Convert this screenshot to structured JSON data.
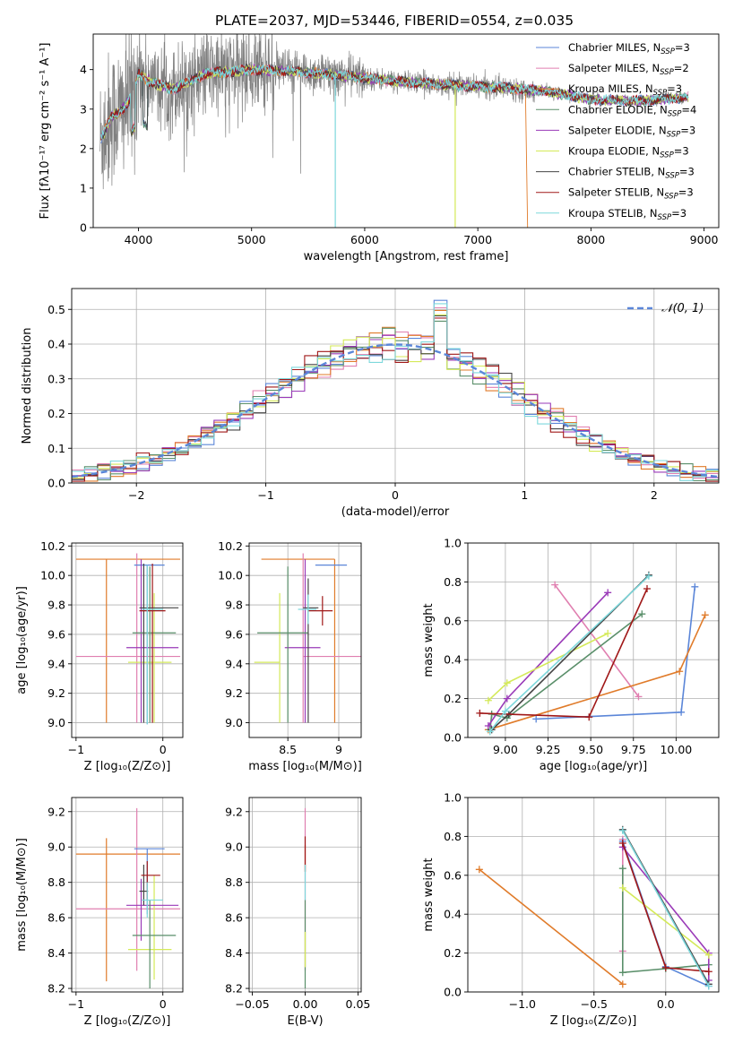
{
  "figure_title": "PLATE=2037, MJD=53446, FIBERID=0554, z=0.035",
  "colors": {
    "chabrier_miles": "#5b86d8",
    "salpeter_miles": "#e07fb0",
    "kroupa_miles": "#e07b2a",
    "chabrier_elodie": "#5a8f6a",
    "salpeter_elodie": "#9a3ab8",
    "kroupa_elodie": "#d4ea58",
    "chabrier_stelib": "#444444",
    "salpeter_stelib": "#a01818",
    "kroupa_stelib": "#7dd8dc",
    "data": "#808080",
    "normal": "#5b86d8"
  },
  "legend": [
    {
      "name": "Chabrier MILES, N",
      "sub": "SSP",
      "suffix": "=3",
      "color_key": "chabrier_miles"
    },
    {
      "name": "Salpeter MILES, N",
      "sub": "SSP",
      "suffix": "=2",
      "color_key": "salpeter_miles"
    },
    {
      "name": "Kroupa MILES, N",
      "sub": "SSP",
      "suffix": "=3",
      "color_key": "kroupa_miles"
    },
    {
      "name": "Chabrier ELODIE, N",
      "sub": "SSP",
      "suffix": "=4",
      "color_key": "chabrier_elodie"
    },
    {
      "name": "Salpeter ELODIE, N",
      "sub": "SSP",
      "suffix": "=3",
      "color_key": "salpeter_elodie"
    },
    {
      "name": "Kroupa ELODIE, N",
      "sub": "SSP",
      "suffix": "=3",
      "color_key": "kroupa_elodie"
    },
    {
      "name": "Chabrier STELIB, N",
      "sub": "SSP",
      "suffix": "=3",
      "color_key": "chabrier_stelib"
    },
    {
      "name": "Salpeter STELIB, N",
      "sub": "SSP",
      "suffix": "=3",
      "color_key": "salpeter_stelib"
    },
    {
      "name": "Kroupa STELIB, N",
      "sub": "SSP",
      "suffix": "=3",
      "color_key": "kroupa_stelib"
    }
  ],
  "chart_data": [
    {
      "id": "spectrum",
      "type": "line",
      "xlabel": "wavelength [Angstrom, rest frame]",
      "ylabel": "Flux [fλ10⁻¹⁷ erg cm⁻² s⁻¹ A⁻¹]",
      "xlim": [
        3600,
        9130
      ],
      "ylim": [
        0,
        4.9
      ],
      "xticks": [
        4000,
        5000,
        6000,
        7000,
        8000,
        9000
      ],
      "yticks": [
        0,
        1,
        2,
        3,
        4
      ],
      "grid": false,
      "legend_position": "top-right",
      "data_range": [
        3660,
        8860
      ],
      "model_profile": [
        [
          3660,
          2.2
        ],
        [
          3760,
          2.8
        ],
        [
          3860,
          3.0
        ],
        [
          3960,
          3.4
        ],
        [
          4000,
          3.9
        ],
        [
          4100,
          3.7
        ],
        [
          4300,
          3.5
        ],
        [
          4600,
          3.9
        ],
        [
          5000,
          4.0
        ],
        [
          5400,
          3.95
        ],
        [
          5800,
          3.85
        ],
        [
          6300,
          3.7
        ],
        [
          6800,
          3.6
        ],
        [
          7200,
          3.55
        ],
        [
          7600,
          3.45
        ],
        [
          8000,
          3.25
        ],
        [
          8400,
          3.2
        ],
        [
          8860,
          3.3
        ]
      ]
    },
    {
      "id": "residuals",
      "type": "line",
      "xlabel": "(data-model)/error",
      "ylabel": "Normed distribution",
      "xlim": [
        -2.5,
        2.5
      ],
      "ylim": [
        0,
        0.56
      ],
      "xticks": [
        -2,
        -1,
        0,
        1,
        2
      ],
      "yticks": [
        0,
        0.1,
        0.2,
        0.3,
        0.4,
        0.5
      ],
      "grid": true,
      "legend": "𝒩(0, 1)",
      "legend_position": "top-right",
      "bin_width": 0.1
    },
    {
      "id": "age_vs_Z",
      "type": "scatter",
      "xlabel": "Z [log₁₀(Z/Z⊙)]",
      "ylabel": "age  [log₁₀(age/yr)]",
      "xlim": [
        -1.05,
        0.23
      ],
      "ylim": [
        8.9,
        10.22
      ],
      "xticks": [
        -1,
        0
      ],
      "yticks": [
        9.0,
        9.2,
        9.4,
        9.6,
        9.8,
        10.0,
        10.2
      ],
      "grid": true,
      "points": [
        {
          "series": "kroupa_miles",
          "x": -0.65,
          "xerr": [
            0.35,
            0.85
          ],
          "y": 10.11,
          "yerr": [
            1.11,
            0.0
          ]
        },
        {
          "series": "salpeter_miles",
          "x": -0.3,
          "xerr": [
            0.7,
            0.5
          ],
          "y": 9.45,
          "yerr": [
            0.45,
            0.7
          ]
        },
        {
          "series": "chabrier_miles",
          "x": -0.18,
          "xerr": [
            0.15,
            0.2
          ],
          "y": 10.07,
          "yerr": [
            1.08,
            0.0
          ]
        },
        {
          "series": "kroupa_elodie",
          "x": -0.1,
          "xerr": [
            0.3,
            0.2
          ],
          "y": 9.41,
          "yerr": [
            0.41,
            0.47
          ]
        },
        {
          "series": "salpeter_elodie",
          "x": -0.25,
          "xerr": [
            0.17,
            0.43
          ],
          "y": 9.51,
          "yerr": [
            0.51,
            0.6
          ]
        },
        {
          "series": "chabrier_elodie",
          "x": -0.15,
          "xerr": [
            0.2,
            0.3
          ],
          "y": 9.61,
          "yerr": [
            0.61,
            0.45
          ]
        },
        {
          "series": "chabrier_stelib",
          "x": -0.22,
          "xerr": [
            0.05,
            0.4
          ],
          "y": 9.78,
          "yerr": [
            0.78,
            0.3
          ]
        },
        {
          "series": "salpeter_stelib",
          "x": -0.12,
          "xerr": [
            0.15,
            0.15
          ],
          "y": 9.76,
          "yerr": [
            0.76,
            0.32
          ]
        },
        {
          "series": "kroupa_stelib",
          "x": -0.18,
          "xerr": [
            0.06,
            0.18
          ],
          "y": 9.77,
          "yerr": [
            0.78,
            0.3
          ]
        }
      ]
    },
    {
      "id": "age_vs_mass",
      "type": "scatter",
      "xlabel": "mass [log₁₀(M/M⊙)]",
      "xlim": [
        8.12,
        9.22
      ],
      "ylim": [
        8.9,
        10.22
      ],
      "xticks": [
        8.5,
        9.0
      ],
      "yticks": [
        9.0,
        9.2,
        9.4,
        9.6,
        9.8,
        10.0,
        10.2
      ],
      "grid": true,
      "points": [
        {
          "series": "kroupa_miles",
          "x": 8.96,
          "xerr": [
            0.72,
            0.0
          ],
          "y": 10.11,
          "yerr": [
            1.11,
            0.0
          ]
        },
        {
          "series": "salpeter_miles",
          "x": 8.65,
          "xerr": [
            0.0,
            0.57
          ],
          "y": 9.45,
          "yerr": [
            0.45,
            0.7
          ]
        },
        {
          "series": "chabrier_miles",
          "x": 9.0,
          "xerr": [
            0.23,
            0.08
          ],
          "y": 10.07,
          "yerr": [
            0.0,
            0.0
          ]
        },
        {
          "series": "kroupa_elodie",
          "x": 8.42,
          "xerr": [
            0.25,
            0.0
          ],
          "y": 9.41,
          "yerr": [
            0.41,
            0.47
          ]
        },
        {
          "series": "salpeter_elodie",
          "x": 8.67,
          "xerr": [
            0.2,
            0.15
          ],
          "y": 9.51,
          "yerr": [
            0.51,
            0.6
          ]
        },
        {
          "series": "chabrier_elodie",
          "x": 8.5,
          "xerr": [
            0.3,
            0.2
          ],
          "y": 9.61,
          "yerr": [
            0.61,
            0.45
          ]
        },
        {
          "series": "chabrier_stelib",
          "x": 8.7,
          "xerr": [
            0.05,
            0.1
          ],
          "y": 9.78,
          "yerr": [
            0.78,
            0.2
          ]
        },
        {
          "series": "salpeter_stelib",
          "x": 8.84,
          "xerr": [
            0.14,
            0.1
          ],
          "y": 9.76,
          "yerr": [
            0.1,
            0.1
          ]
        },
        {
          "series": "kroupa_stelib",
          "x": 8.7,
          "xerr": [
            0.1,
            0.08
          ],
          "y": 9.77,
          "yerr": [
            0.1,
            0.1
          ]
        }
      ]
    },
    {
      "id": "weight_vs_age",
      "type": "line",
      "xlabel": "age  [log₁₀(age/yr)]",
      "ylabel": "mass weight",
      "xlim": [
        8.78,
        10.25
      ],
      "ylim": [
        0,
        1.0
      ],
      "xticks": [
        9.0,
        9.25,
        9.5,
        9.75,
        10.0
      ],
      "xtick_labels": [
        "9.00",
        "9.25",
        "9.50",
        "9.75",
        "10.00"
      ],
      "yticks": [
        0.0,
        0.2,
        0.4,
        0.6,
        0.8,
        1.0
      ],
      "grid": true,
      "series": [
        {
          "name": "chabrier_miles",
          "x": [
            9.18,
            10.03,
            10.11
          ],
          "y": [
            0.095,
            0.13,
            0.775
          ]
        },
        {
          "name": "salpeter_miles",
          "x": [
            9.29,
            9.78
          ],
          "y": [
            0.785,
            0.21
          ]
        },
        {
          "name": "kroupa_miles",
          "x": [
            8.9,
            10.02,
            10.17
          ],
          "y": [
            0.04,
            0.34,
            0.63
          ]
        },
        {
          "name": "chabrier_elodie",
          "x": [
            8.91,
            8.92,
            9.01,
            9.8
          ],
          "y": [
            0.04,
            0.12,
            0.1,
            0.635
          ]
        },
        {
          "name": "salpeter_elodie",
          "x": [
            8.9,
            9.01,
            9.6
          ],
          "y": [
            0.06,
            0.2,
            0.745
          ]
        },
        {
          "name": "kroupa_elodie",
          "x": [
            8.9,
            9.01,
            9.6
          ],
          "y": [
            0.19,
            0.28,
            0.535
          ]
        },
        {
          "name": "chabrier_stelib",
          "x": [
            8.92,
            9.02,
            9.84
          ],
          "y": [
            0.04,
            0.12,
            0.835
          ]
        },
        {
          "name": "salpeter_stelib",
          "x": [
            8.85,
            9.49,
            9.83
          ],
          "y": [
            0.125,
            0.105,
            0.765
          ]
        },
        {
          "name": "kroupa_stelib",
          "x": [
            8.91,
            9.0,
            9.84
          ],
          "y": [
            0.03,
            0.135,
            0.83
          ]
        }
      ]
    },
    {
      "id": "mass_vs_Z",
      "type": "scatter",
      "xlabel": "Z [log₁₀(Z/Z⊙)]",
      "ylabel": "mass [log₁₀(M/M⊙)]",
      "xlim": [
        -1.05,
        0.23
      ],
      "ylim": [
        8.18,
        9.28
      ],
      "xticks": [
        -1,
        0
      ],
      "yticks": [
        8.2,
        8.4,
        8.6,
        8.8,
        9.0,
        9.2
      ],
      "grid": true,
      "points": [
        {
          "series": "kroupa_miles",
          "x": -0.65,
          "xerr": [
            0.35,
            0.85
          ],
          "y": 8.96,
          "yerr": [
            0.72,
            0.09
          ]
        },
        {
          "series": "salpeter_miles",
          "x": -0.3,
          "xerr": [
            0.7,
            0.5
          ],
          "y": 8.65,
          "yerr": [
            0.35,
            0.57
          ]
        },
        {
          "series": "chabrier_miles",
          "x": -0.18,
          "xerr": [
            0.15,
            0.2
          ],
          "y": 8.99,
          "yerr": [
            0.37,
            0.0
          ]
        },
        {
          "series": "kroupa_elodie",
          "x": -0.1,
          "xerr": [
            0.3,
            0.2
          ],
          "y": 8.42,
          "yerr": [
            0.17,
            0.42
          ]
        },
        {
          "series": "salpeter_elodie",
          "x": -0.25,
          "xerr": [
            0.17,
            0.43
          ],
          "y": 8.67,
          "yerr": [
            0.2,
            0.15
          ]
        },
        {
          "series": "chabrier_elodie",
          "x": -0.15,
          "xerr": [
            0.2,
            0.3
          ],
          "y": 8.5,
          "yerr": [
            0.3,
            0.2
          ]
        },
        {
          "series": "chabrier_stelib",
          "x": -0.22,
          "xerr": [
            0.05,
            0.05
          ],
          "y": 8.75,
          "yerr": [
            0.08,
            0.15
          ]
        },
        {
          "series": "salpeter_stelib",
          "x": -0.18,
          "xerr": [
            0.07,
            0.15
          ],
          "y": 8.84,
          "yerr": [
            0.14,
            0.08
          ]
        },
        {
          "series": "kroupa_stelib",
          "x": -0.18,
          "xerr": [
            0.06,
            0.18
          ],
          "y": 8.7,
          "yerr": [
            0.1,
            0.1
          ]
        }
      ]
    },
    {
      "id": "mass_vs_ebv",
      "type": "scatter",
      "xlabel": "E(B-V)",
      "xlim": [
        -0.053,
        0.053
      ],
      "ylim": [
        8.18,
        9.28
      ],
      "xticks": [
        -0.05,
        0.0,
        0.05
      ],
      "xtick_labels": [
        "−0.05",
        "0.00",
        "0.05"
      ],
      "yticks": [
        8.2,
        8.4,
        8.6,
        8.8,
        9.0,
        9.2
      ],
      "grid": true,
      "points": [
        {
          "series": "salpeter_miles",
          "x": 0.0,
          "y": 8.65,
          "yerr": [
            0.35,
            0.57
          ]
        },
        {
          "series": "kroupa_miles",
          "x": 0.0,
          "y": 8.96,
          "yerr": [
            0.1,
            0.05
          ]
        },
        {
          "series": "chabrier_elodie",
          "x": 0.0,
          "y": 8.5,
          "yerr": [
            0.3,
            0.2
          ]
        },
        {
          "series": "salpeter_stelib",
          "x": 0.0,
          "y": 8.96,
          "yerr": [
            0.1,
            0.1
          ]
        },
        {
          "series": "kroupa_elodie",
          "x": 0.0,
          "y": 8.42,
          "yerr": [
            0.1,
            0.1
          ]
        },
        {
          "series": "kroupa_stelib",
          "x": 0.0,
          "y": 8.8,
          "yerr": [
            0.1,
            0.1
          ]
        }
      ]
    },
    {
      "id": "weight_vs_Z",
      "type": "line",
      "xlabel": "Z [log₁₀(Z/Z⊙)]",
      "ylabel": "mass weight",
      "xlim": [
        -1.38,
        0.37
      ],
      "ylim": [
        0,
        1.0
      ],
      "xticks": [
        -1.0,
        -0.5,
        0.0
      ],
      "xtick_labels": [
        "−1.0",
        "−0.5",
        "0.0"
      ],
      "yticks": [
        0.0,
        0.2,
        0.4,
        0.6,
        0.8,
        1.0
      ],
      "grid": true,
      "series": [
        {
          "name": "kroupa_miles",
          "x": [
            -1.3,
            -0.3
          ],
          "y": [
            0.63,
            0.04
          ]
        },
        {
          "name": "salpeter_miles",
          "x": [
            -0.3,
            -0.3
          ],
          "y": [
            0.785,
            0.21
          ]
        },
        {
          "name": "chabrier_miles",
          "x": [
            -0.3,
            0.0,
            0.3
          ],
          "y": [
            0.775,
            0.13,
            0.03
          ]
        },
        {
          "name": "chabrier_elodie",
          "x": [
            -0.3,
            -0.3,
            0.0,
            0.3
          ],
          "y": [
            0.635,
            0.1,
            0.12,
            0.14
          ]
        },
        {
          "name": "salpeter_elodie",
          "x": [
            -0.3,
            0.3,
            0.3
          ],
          "y": [
            0.745,
            0.2,
            0.06
          ]
        },
        {
          "name": "kroupa_elodie",
          "x": [
            -0.3,
            0.3
          ],
          "y": [
            0.535,
            0.19
          ]
        },
        {
          "name": "chabrier_stelib",
          "x": [
            -0.3,
            0.3
          ],
          "y": [
            0.835,
            0.04
          ]
        },
        {
          "name": "salpeter_stelib",
          "x": [
            -0.3,
            0.0,
            0.3
          ],
          "y": [
            0.765,
            0.125,
            0.105
          ]
        },
        {
          "name": "kroupa_stelib",
          "x": [
            -0.3,
            0.3
          ],
          "y": [
            0.83,
            0.03
          ]
        }
      ]
    }
  ]
}
